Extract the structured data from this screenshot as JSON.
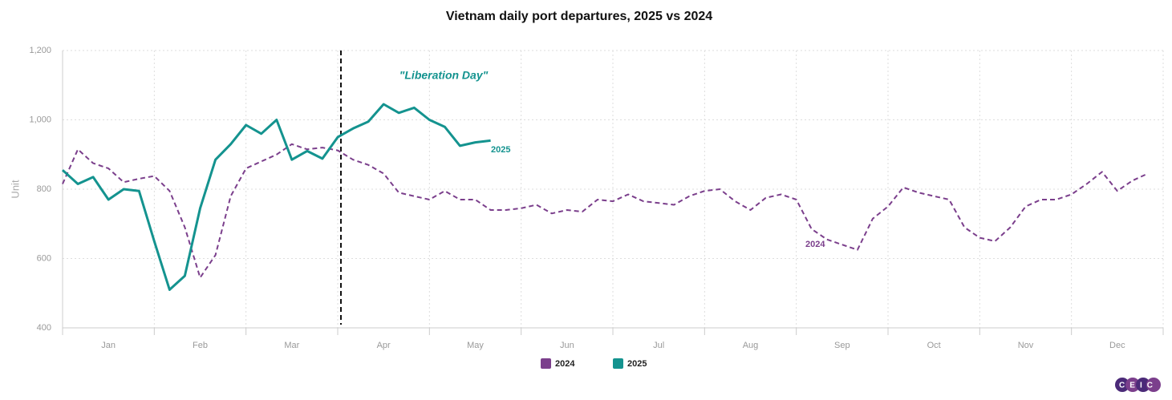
{
  "chart_data": {
    "type": "line",
    "title": "Vietnam daily port departures, 2025 vs 2024",
    "y_label": "Unit",
    "categories": [
      "Jan",
      "Feb",
      "Mar",
      "Apr",
      "May",
      "Jun",
      "Jul",
      "Aug",
      "Sep",
      "Oct",
      "Nov",
      "Dec"
    ],
    "series": [
      {
        "name": "2024",
        "color": "#7b3f8c",
        "line_style": "dashed",
        "values": [
          [
            815,
            915,
            875,
            860,
            820,
            830
          ],
          [
            838,
            795,
            690,
            545,
            610,
            780
          ],
          [
            860,
            880,
            900,
            930,
            915,
            920
          ],
          [
            912,
            885,
            870,
            845,
            790,
            780
          ],
          [
            770,
            795,
            770,
            770,
            740,
            740
          ],
          [
            745,
            755,
            730,
            740,
            735,
            770
          ],
          [
            765,
            785,
            765,
            760,
            755,
            780
          ],
          [
            795,
            800,
            765,
            740,
            775,
            785
          ],
          [
            770,
            685,
            655,
            640,
            625,
            715
          ],
          [
            750,
            805,
            790,
            780,
            770,
            690
          ],
          [
            660,
            650,
            690,
            750,
            770,
            770
          ],
          [
            785,
            815,
            850,
            795,
            825,
            845
          ]
        ]
      },
      {
        "name": "2025",
        "color": "#14938f",
        "line_style": "solid",
        "values": [
          [
            855,
            815,
            835,
            770,
            800,
            795
          ],
          [
            650,
            510,
            550,
            745,
            885,
            930
          ],
          [
            985,
            960,
            1000,
            885,
            910,
            888
          ],
          [
            950,
            975,
            995,
            1045,
            1020,
            1035
          ],
          [
            1000,
            980,
            925,
            935,
            940,
            null
          ],
          [
            null,
            null,
            null,
            null,
            null,
            null
          ],
          [
            null,
            null,
            null,
            null,
            null,
            null
          ],
          [
            null,
            null,
            null,
            null,
            null,
            null
          ],
          [
            null,
            null,
            null,
            null,
            null,
            null
          ],
          [
            null,
            null,
            null,
            null,
            null,
            null
          ],
          [
            null,
            null,
            null,
            null,
            null,
            null
          ],
          [
            null,
            null,
            null,
            null,
            null,
            null
          ]
        ]
      }
    ],
    "ylim": [
      400,
      1200
    ],
    "yticks": [
      400,
      600,
      800,
      {
        "value": 1000,
        "label": "1,000"
      },
      {
        "value": 1200,
        "label": "1,200"
      }
    ],
    "grid": true,
    "legend": "bottom",
    "annotation": {
      "text": "\"Liberation Day\"",
      "category": "Apr"
    },
    "logo": "CEIC"
  }
}
